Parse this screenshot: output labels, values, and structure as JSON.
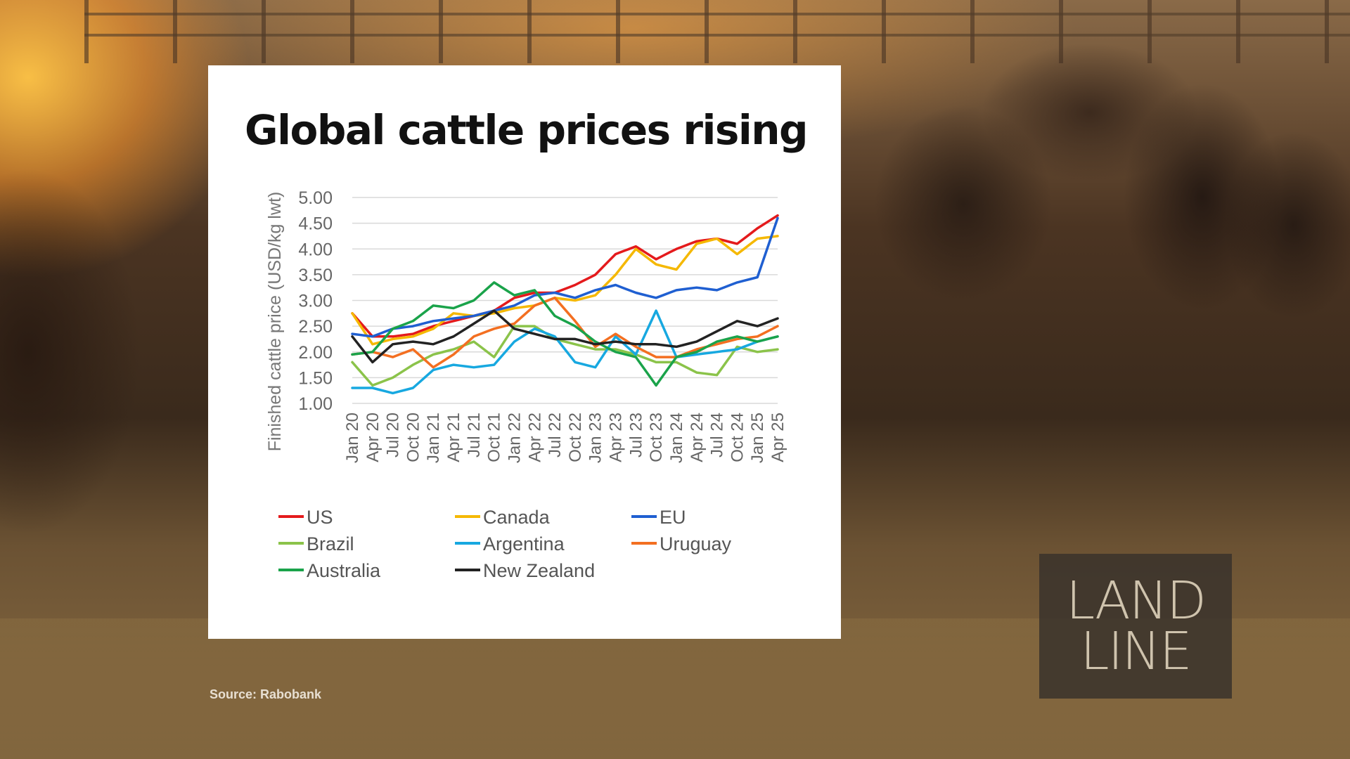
{
  "title": "Global cattle prices rising",
  "source": "Source: Rabobank",
  "logo": {
    "line1": "LAND",
    "line2": "LINE"
  },
  "chart_data": {
    "type": "line",
    "title": "Global cattle prices rising",
    "ylabel": "Finished cattle price (USD/kg lwt)",
    "xlabel": "",
    "ylim": [
      1.0,
      5.0
    ],
    "yticks": [
      "5.00",
      "4.50",
      "4.00",
      "3.50",
      "3.00",
      "2.50",
      "2.00",
      "1.50",
      "1.00"
    ],
    "categories": [
      "Jan 20",
      "Apr 20",
      "Jul 20",
      "Oct 20",
      "Jan 21",
      "Apr 21",
      "Jul 21",
      "Oct 21",
      "Jan 22",
      "Apr 22",
      "Jul 22",
      "Oct 22",
      "Jan 23",
      "Apr 23",
      "Jul 23",
      "Oct 23",
      "Jan 24",
      "Apr 24",
      "Jul 24",
      "Oct 24",
      "Jan 25",
      "Apr 25"
    ],
    "grid": true,
    "legend_position": "bottom",
    "series": [
      {
        "name": "US",
        "color": "#e41a1c",
        "values": [
          2.75,
          2.3,
          2.3,
          2.35,
          2.5,
          2.6,
          2.7,
          2.8,
          3.05,
          3.15,
          3.15,
          3.3,
          3.5,
          3.9,
          4.05,
          3.8,
          4.0,
          4.15,
          4.2,
          4.1,
          4.4,
          4.65
        ]
      },
      {
        "name": "Canada",
        "color": "#f5b800",
        "values": [
          2.75,
          2.15,
          2.25,
          2.3,
          2.45,
          2.75,
          2.7,
          2.75,
          2.85,
          2.9,
          3.05,
          3.0,
          3.1,
          3.5,
          4.0,
          3.7,
          3.6,
          4.1,
          4.2,
          3.9,
          4.2,
          4.25
        ]
      },
      {
        "name": "EU",
        "color": "#1f5fd1",
        "values": [
          2.35,
          2.3,
          2.45,
          2.5,
          2.6,
          2.65,
          2.7,
          2.8,
          2.9,
          3.1,
          3.15,
          3.05,
          3.2,
          3.3,
          3.15,
          3.05,
          3.2,
          3.25,
          3.2,
          3.35,
          3.45,
          4.6
        ]
      },
      {
        "name": "Brazil",
        "color": "#8bc34a",
        "values": [
          1.8,
          1.35,
          1.5,
          1.75,
          1.95,
          2.05,
          2.2,
          1.9,
          2.5,
          2.5,
          2.25,
          2.15,
          2.05,
          2.05,
          1.95,
          1.8,
          1.8,
          1.6,
          1.55,
          2.1,
          2.0,
          2.05
        ]
      },
      {
        "name": "Argentina",
        "color": "#17a8e0",
        "values": [
          1.3,
          1.3,
          1.2,
          1.3,
          1.65,
          1.75,
          1.7,
          1.75,
          2.2,
          2.45,
          2.3,
          1.8,
          1.7,
          2.3,
          1.95,
          2.8,
          1.9,
          1.95,
          2.0,
          2.05,
          2.2,
          2.3
        ]
      },
      {
        "name": "Uruguay",
        "color": "#f36f21",
        "values": [
          1.95,
          2.0,
          1.9,
          2.05,
          1.7,
          1.95,
          2.3,
          2.45,
          2.55,
          2.9,
          3.05,
          2.6,
          2.1,
          2.35,
          2.1,
          1.9,
          1.9,
          2.05,
          2.15,
          2.25,
          2.3,
          2.5
        ]
      },
      {
        "name": "Australia",
        "color": "#1aa34a",
        "values": [
          1.95,
          2.0,
          2.45,
          2.6,
          2.9,
          2.85,
          3.0,
          3.35,
          3.1,
          3.2,
          2.7,
          2.5,
          2.2,
          2.0,
          1.9,
          1.35,
          1.9,
          2.0,
          2.2,
          2.3,
          2.2,
          2.3
        ]
      },
      {
        "name": "New Zealand",
        "color": "#222222",
        "values": [
          2.3,
          1.8,
          2.15,
          2.2,
          2.15,
          2.3,
          2.55,
          2.8,
          2.45,
          2.35,
          2.25,
          2.25,
          2.15,
          2.2,
          2.15,
          2.15,
          2.1,
          2.2,
          2.4,
          2.6,
          2.5,
          2.65
        ]
      }
    ]
  }
}
